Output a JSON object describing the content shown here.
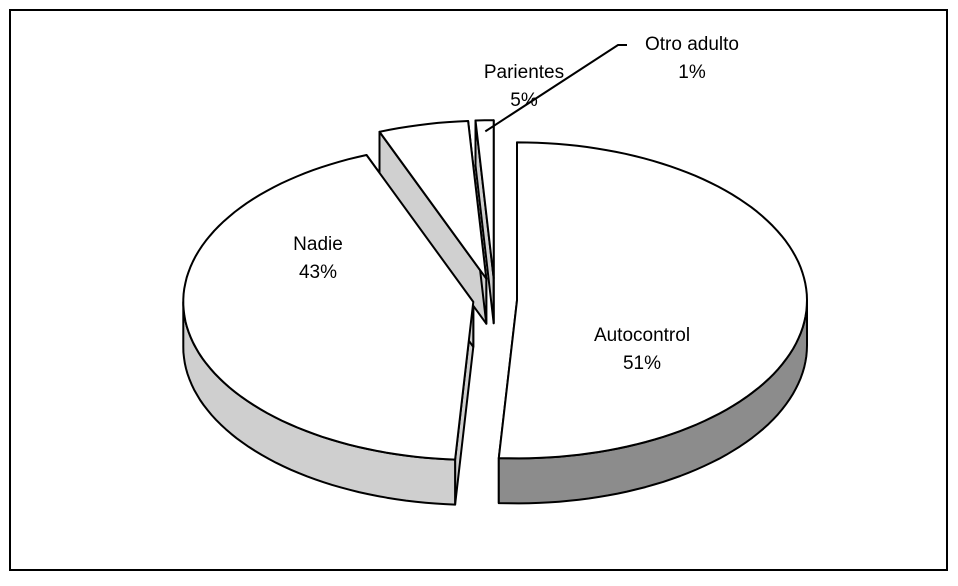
{
  "chart_data": {
    "type": "pie",
    "categories": [
      "Autocontrol",
      "Nadie",
      "Parientes",
      "Otro adulto"
    ],
    "values": [
      51,
      43,
      5,
      1
    ],
    "value_labels": [
      "51%",
      "43%",
      "5%",
      "1%"
    ],
    "colors": [
      "#ffffff",
      "#ffffff",
      "#ffffff",
      "#ffffff"
    ]
  }
}
